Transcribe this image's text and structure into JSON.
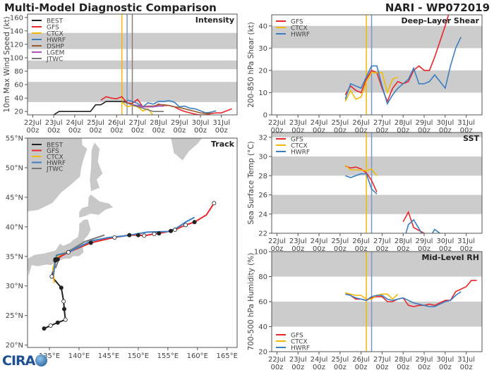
{
  "header": {
    "title": "Multi-Model Diagnostic Comparison",
    "storm": "NARI - WP072019"
  },
  "logo": {
    "text": "CIRA"
  },
  "colors": {
    "BEST": "#222222",
    "GFS": "#e8262b",
    "CTCX": "#f2b90c",
    "HWRF": "#3c7fc0",
    "DSHP": "#9a5b2e",
    "LGEM": "#b04fc0",
    "JTWC": "#777777",
    "band": "#cccccc",
    "land": "#c8c8c8"
  },
  "chart_data": [
    {
      "id": "intensity",
      "type": "line",
      "title": "Intensity",
      "ylabel": "10m Max Wind Speed (kt)",
      "xlim": [
        "21Jul 18z",
        "31Jul 18z"
      ],
      "ylim": [
        15,
        165
      ],
      "xticks": [
        "22Jul 00z",
        "23Jul 00z",
        "24Jul 00z",
        "25Jul 00z",
        "26Jul 00z",
        "27Jul 00z",
        "28Jul 00z",
        "29Jul 00z",
        "30Jul 00z",
        "31Jul 00z"
      ],
      "yticks": [
        20,
        40,
        60,
        80,
        100,
        120,
        140,
        160
      ],
      "shaded_bands": [
        [
          34,
          64
        ],
        [
          83,
          96
        ],
        [
          113,
          137
        ]
      ],
      "vlines": [
        {
          "t": "26Jul 06z",
          "color": "#f2b90c"
        },
        {
          "t": "26Jul 12z",
          "color": "#7f96c4"
        },
        {
          "t": "26Jul 18z",
          "color": "#8c7a80"
        }
      ],
      "legend": "top-left",
      "series": [
        {
          "name": "BEST",
          "start": "23Jul 00z",
          "step_hours": 6,
          "values": [
            15,
            20,
            20,
            20,
            20,
            20,
            20,
            20,
            30,
            30,
            35,
            35,
            35,
            35,
            35
          ]
        },
        {
          "name": "GFS",
          "start": "25Jul 06z",
          "step_hours": 6,
          "values": [
            37,
            42,
            40,
            39,
            42,
            33,
            32,
            38,
            27,
            27,
            27,
            31,
            29,
            29,
            27,
            23,
            20,
            18,
            16,
            15,
            15,
            17,
            18,
            18,
            21,
            24
          ]
        },
        {
          "name": "CTCX",
          "start": "26Jul 06z",
          "step_hours": 6,
          "values": [
            35,
            27,
            29,
            27,
            21,
            24,
            14
          ]
        },
        {
          "name": "HWRF",
          "start": "26Jul 12z",
          "step_hours": 6,
          "values": [
            37,
            35,
            32,
            27,
            33,
            31,
            35,
            35,
            36,
            34,
            27,
            28,
            25,
            24,
            21,
            18,
            19,
            21
          ]
        },
        {
          "name": "DSHP",
          "start": "26Jul 18z",
          "step_hours": 6,
          "values": [
            30,
            29,
            27,
            28,
            28,
            30,
            30,
            29,
            27,
            26,
            24,
            22,
            20,
            18,
            17,
            17
          ]
        },
        {
          "name": "LGEM",
          "start": "26Jul 18z",
          "step_hours": 6,
          "values": [
            30,
            29,
            27,
            27,
            27,
            28,
            28
          ]
        },
        {
          "name": "JTWC",
          "start": "26Jul 06z",
          "step_hours": 12,
          "values": [
            35,
            30,
            25,
            20,
            20
          ]
        }
      ]
    },
    {
      "id": "shear",
      "type": "line",
      "title": "Deep-Layer Shear",
      "ylabel": "200-850 hPa Shear (kt)",
      "xlim": [
        "21Jul 18z",
        "31Jul 18z"
      ],
      "ylim": [
        0,
        45
      ],
      "xticks": [
        "22Jul 00z",
        "23Jul 00z",
        "24Jul 00z",
        "25Jul 00z",
        "26Jul 00z",
        "27Jul 00z",
        "28Jul 00z",
        "29Jul 00z",
        "30Jul 00z",
        "31Jul 00z"
      ],
      "yticks": [
        0,
        10,
        20,
        30,
        40
      ],
      "shaded_bands": [
        [
          10,
          20
        ],
        [
          30,
          40
        ]
      ],
      "vlines": [
        {
          "t": "26Jul 06z",
          "color": "#f2b90c"
        },
        {
          "t": "26Jul 12z",
          "color": "#7f96c4"
        }
      ],
      "legend": "top-left",
      "series": [
        {
          "name": "GFS",
          "start": "25Jul 06z",
          "step_hours": 6,
          "values": [
            9,
            13,
            11,
            10,
            16,
            20,
            19,
            12,
            6,
            12,
            15,
            14,
            15,
            20,
            22,
            20,
            20,
            26,
            33,
            40,
            48
          ]
        },
        {
          "name": "CTCX",
          "start": "25Jul 06z",
          "step_hours": 6,
          "values": [
            6,
            11,
            7,
            8,
            15,
            19,
            19,
            19,
            10,
            16,
            17
          ]
        },
        {
          "name": "HWRF",
          "start": "25Jul 06z",
          "step_hours": 6,
          "values": [
            7,
            14,
            13,
            12,
            17,
            22,
            22,
            13,
            5,
            9,
            12,
            14,
            16,
            21,
            14,
            14,
            15,
            18,
            15,
            12,
            22,
            30,
            35
          ]
        }
      ]
    },
    {
      "id": "sst",
      "type": "line",
      "title": "SST",
      "ylabel": "Sea Surface Temp (°C)",
      "xlim": [
        "21Jul 18z",
        "31Jul 18z"
      ],
      "ylim": [
        22,
        32.5
      ],
      "xticks": [
        "22Jul 00z",
        "23Jul 00z",
        "24Jul 00z",
        "25Jul 00z",
        "26Jul 00z",
        "27Jul 00z",
        "28Jul 00z",
        "29Jul 00z",
        "30Jul 00z",
        "31Jul 00z"
      ],
      "yticks": [
        22,
        24,
        26,
        28,
        30,
        32
      ],
      "shaded_bands": [
        [
          24,
          26
        ],
        [
          28,
          30
        ],
        [
          32,
          33
        ]
      ],
      "vlines": [
        {
          "t": "26Jul 06z",
          "color": "#f2b90c"
        },
        {
          "t": "26Jul 12z",
          "color": "#7f96c4"
        }
      ],
      "legend": "top-left",
      "series": [
        {
          "name": "GFS",
          "start": "25Jul 06z",
          "step_hours": 6,
          "values": [
            29.0,
            28.8,
            28.9,
            28.7,
            28.3,
            27.5,
            26.3,
            null,
            null,
            null,
            null,
            23.2,
            24.2,
            22.6,
            22.3,
            22.0,
            21.5
          ]
        },
        {
          "name": "CTCX",
          "start": "25Jul 06z",
          "step_hours": 6,
          "values": [
            29.1,
            28.6,
            28.6,
            28.6,
            28.5,
            28.7,
            28.0
          ]
        },
        {
          "name": "HWRF",
          "start": "25Jul 06z",
          "step_hours": 6,
          "values": [
            28.0,
            27.8,
            28.0,
            28.2,
            28.2,
            26.6,
            26.1,
            null,
            null,
            null,
            null,
            21.0,
            22.9,
            23.4,
            22.5,
            21.5,
            21.5,
            22.4,
            22.0,
            21.5
          ]
        }
      ]
    },
    {
      "id": "rh",
      "type": "line",
      "title": "Mid-Level RH",
      "ylabel": "700-500 hPa Humidity (%)",
      "xlim": [
        "21Jul 18z",
        "31Jul 18z"
      ],
      "ylim": [
        20,
        100
      ],
      "xticks": [
        "22Jul 00z",
        "23Jul 00z",
        "24Jul 00z",
        "25Jul 00z",
        "26Jul 00z",
        "27Jul 00z",
        "28Jul 00z",
        "29Jul 00z",
        "30Jul 00z",
        "31Jul 00z"
      ],
      "yticks": [
        20,
        40,
        60,
        80,
        100
      ],
      "shaded_bands": [
        [
          40,
          60
        ],
        [
          80,
          100
        ]
      ],
      "vlines": [
        {
          "t": "26Jul 06z",
          "color": "#f2b90c"
        },
        {
          "t": "26Jul 12z",
          "color": "#7f96c4"
        }
      ],
      "legend": "bottom-left",
      "series": [
        {
          "name": "GFS",
          "start": "25Jul 06z",
          "step_hours": 6,
          "values": [
            67,
            65,
            62,
            62,
            61,
            63,
            64,
            64,
            60,
            60,
            62,
            63,
            57,
            56,
            57,
            57,
            58,
            57,
            59,
            61,
            61,
            68,
            70,
            72,
            77,
            77
          ]
        },
        {
          "name": "CTCX",
          "start": "25Jul 06z",
          "step_hours": 6,
          "values": [
            67,
            66,
            65,
            65,
            62,
            62,
            65,
            66,
            66,
            62,
            66
          ]
        },
        {
          "name": "HWRF",
          "start": "25Jul 06z",
          "step_hours": 6,
          "values": [
            66,
            65,
            63,
            62,
            61,
            64,
            65,
            65,
            62,
            61,
            62,
            63,
            61,
            59,
            58,
            57,
            56,
            56,
            58,
            60,
            61,
            65,
            68
          ]
        }
      ]
    },
    {
      "id": "track",
      "type": "line",
      "title": "Track",
      "xlim": [
        131.3,
        166.7
      ],
      "ylim": [
        19.6,
        55
      ],
      "xticks": [
        135,
        140,
        145,
        150,
        155,
        160,
        165
      ],
      "xtick_labels": [
        "135°E",
        "140°E",
        "145°E",
        "150°E",
        "155°E",
        "160°E",
        "165°E"
      ],
      "yticks": [
        20,
        25,
        30,
        35,
        40,
        45,
        50,
        55
      ],
      "ytick_labels": [
        "20°N",
        "25°N",
        "30°N",
        "35°N",
        "40°N",
        "45°N",
        "50°N",
        "55°N"
      ],
      "legend": "top-left",
      "series": [
        {
          "name": "BEST",
          "points": [
            [
              134.1,
              22.8
            ],
            [
              135.2,
              23.3
            ],
            [
              136.4,
              23.8
            ],
            [
              137.7,
              24.3
            ],
            [
              137.5,
              26.1
            ],
            [
              137.4,
              27.4
            ],
            [
              137.0,
              29.7
            ],
            [
              135.4,
              31.6
            ],
            [
              136.0,
              34.3
            ],
            [
              136.4,
              34.5
            ]
          ],
          "markers": [
            "filled",
            "open",
            "filled",
            "open",
            "filled",
            "open",
            "filled",
            "open",
            "filled",
            "filled"
          ]
        },
        {
          "name": "JTWC",
          "points": [
            [
              136.0,
              33.0
            ],
            [
              136.8,
              35.0
            ],
            [
              139.0,
              36.3
            ],
            [
              141.0,
              37.5
            ],
            [
              144.3,
              38.6
            ]
          ]
        },
        {
          "name": "CTCX",
          "points": [
            [
              135.8,
              30.5
            ],
            [
              135.6,
              33.0
            ],
            [
              136.3,
              35.0
            ],
            [
              138.0,
              35.8
            ]
          ]
        },
        {
          "name": "GFS",
          "points": [
            [
              135.7,
              32.0
            ],
            [
              136.0,
              34.5
            ],
            [
              138.2,
              35.7
            ],
            [
              142.0,
              37.3
            ],
            [
              145.0,
              38.0
            ],
            [
              146.0,
              38.2
            ],
            [
              148.5,
              38.6
            ],
            [
              150.0,
              38.6
            ],
            [
              151.0,
              38.5
            ],
            [
              152.7,
              38.8
            ],
            [
              153.5,
              38.9
            ],
            [
              155.5,
              39.3
            ],
            [
              156.2,
              39.5
            ],
            [
              158.0,
              40.3
            ],
            [
              159.5,
              40.8
            ],
            [
              161.5,
              42.0
            ],
            [
              162.8,
              44.0
            ]
          ],
          "markers": [
            null,
            "filled",
            "open",
            "filled",
            null,
            "open",
            "filled",
            "filled",
            "open",
            "open",
            "filled",
            "filled",
            "open",
            "open",
            "filled",
            null,
            "open"
          ]
        },
        {
          "name": "HWRF",
          "points": [
            [
              135.6,
              31.6
            ],
            [
              136.2,
              35.2
            ],
            [
              138.2,
              35.7
            ],
            [
              142.0,
              37.6
            ],
            [
              145.0,
              38.2
            ],
            [
              148.0,
              38.5
            ],
            [
              151.5,
              39.1
            ],
            [
              155.0,
              39.2
            ],
            [
              156.5,
              39.8
            ],
            [
              158.0,
              40.8
            ],
            [
              159.5,
              41.6
            ]
          ]
        }
      ]
    }
  ]
}
